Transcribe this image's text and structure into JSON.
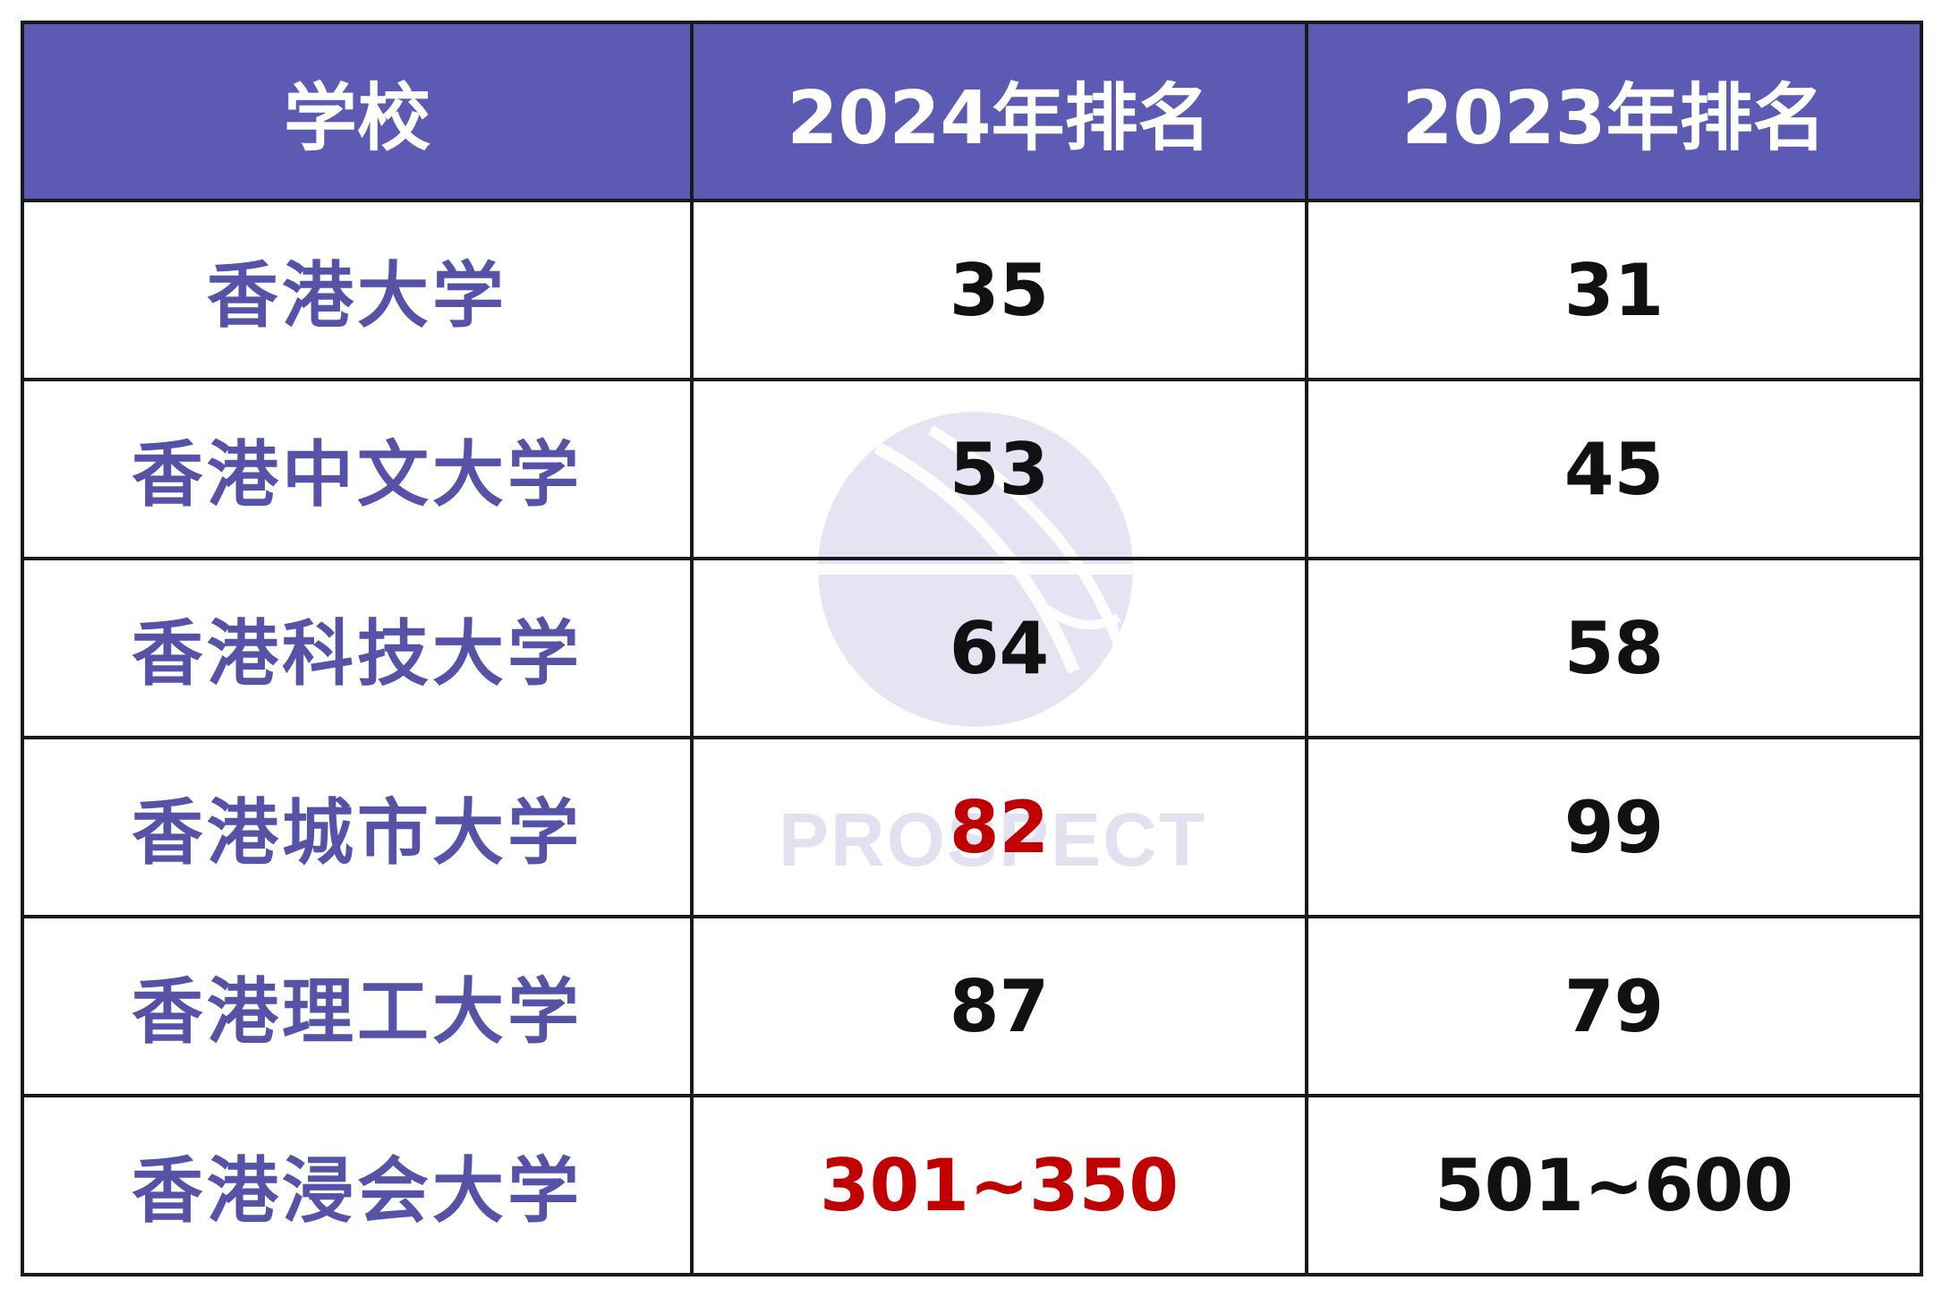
{
  "table": {
    "headers": [
      "学校",
      "2024年排名",
      "2023年排名"
    ],
    "rows": [
      {
        "school": "香港大学",
        "rank_2024": "35",
        "rank_2023": "31",
        "highlight_2024": false
      },
      {
        "school": "香港中文大学",
        "rank_2024": "53",
        "rank_2023": "45",
        "highlight_2024": false
      },
      {
        "school": "香港科技大学",
        "rank_2024": "64",
        "rank_2023": "58",
        "highlight_2024": false
      },
      {
        "school": "香港城市大学",
        "rank_2024": "82",
        "rank_2023": "99",
        "highlight_2024": true
      },
      {
        "school": "香港理工大学",
        "rank_2024": "87",
        "rank_2023": "79",
        "highlight_2024": false
      },
      {
        "school": "香港浸会大学",
        "rank_2024": "301~350",
        "rank_2023": "501~600",
        "highlight_2024": true
      }
    ]
  },
  "watermark": {
    "text": "PROSPECT",
    "logo_icon": "prospect-logo-icon"
  },
  "colors": {
    "header_bg": "#5c5ab3",
    "header_text": "#ffffff",
    "school_text": "#5552a8",
    "rank_text": "#111111",
    "highlight_text": "#c00000",
    "border": "#1a1a1a"
  }
}
